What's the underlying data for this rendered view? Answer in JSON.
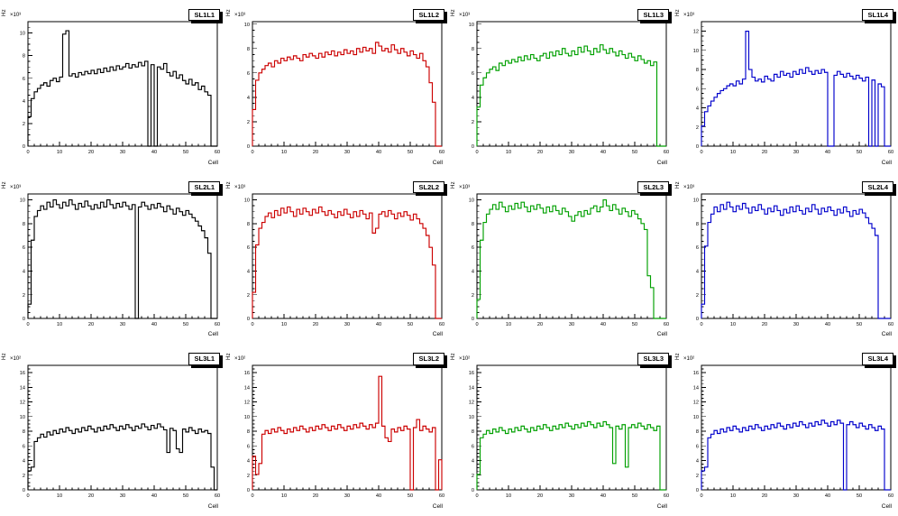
{
  "page": {
    "background": "#ffffff"
  },
  "chart_data": [
    {
      "type": "line",
      "style": "step-histogram",
      "title": "SL1L1",
      "color": "#000000",
      "xlabel": "Cell",
      "ylabel": "Hz",
      "exponent_label": "×10³",
      "xlim": [
        0,
        60
      ],
      "ylim": [
        0,
        11
      ],
      "x_tick_step": 10,
      "y_tick_step": 2,
      "bin_width": 1,
      "grid": false,
      "legend": false,
      "values": [
        2.6,
        4.2,
        4.8,
        5.1,
        5.4,
        5.6,
        5.3,
        5.8,
        6.0,
        5.7,
        6.1,
        9.9,
        10.2,
        6.2,
        6.4,
        6.1,
        6.5,
        6.3,
        6.6,
        6.4,
        6.7,
        6.4,
        6.8,
        6.5,
        6.9,
        6.6,
        7.0,
        6.7,
        7.1,
        6.8,
        7.0,
        7.3,
        6.9,
        7.2,
        7.0,
        7.4,
        7.1,
        7.5,
        0.0,
        7.2,
        0.0,
        7.0,
        6.8,
        7.3,
        6.5,
        6.2,
        6.6,
        6.0,
        6.3,
        5.8,
        5.5,
        5.9,
        5.4,
        5.6,
        5.0,
        5.3,
        4.8,
        4.5,
        0.0,
        0.0
      ]
    },
    {
      "type": "line",
      "style": "step-histogram",
      "title": "SL1L2",
      "color": "#cc0000",
      "xlabel": "Cell",
      "ylabel": "Hz",
      "exponent_label": "×10³",
      "xlim": [
        0,
        60
      ],
      "ylim": [
        0,
        10.2
      ],
      "x_tick_step": 10,
      "y_tick_step": 2,
      "bin_width": 1,
      "grid": false,
      "legend": false,
      "values": [
        3.0,
        5.4,
        6.0,
        6.3,
        6.6,
        6.8,
        6.5,
        7.0,
        6.8,
        7.2,
        7.0,
        7.3,
        7.1,
        7.4,
        7.2,
        7.0,
        7.5,
        7.3,
        7.6,
        7.4,
        7.2,
        7.6,
        7.3,
        7.7,
        7.5,
        7.8,
        7.4,
        7.7,
        7.5,
        7.9,
        7.6,
        7.8,
        7.5,
        8.0,
        7.7,
        8.1,
        7.8,
        8.0,
        7.6,
        8.5,
        8.2,
        7.8,
        8.0,
        7.7,
        8.3,
        7.9,
        7.6,
        8.0,
        7.7,
        7.4,
        7.8,
        7.5,
        7.2,
        7.6,
        7.0,
        6.5,
        5.2,
        3.6,
        0.0,
        0.0
      ]
    },
    {
      "type": "line",
      "style": "step-histogram",
      "title": "SL1L3",
      "color": "#00a000",
      "xlabel": "Cell",
      "ylabel": "Hz",
      "exponent_label": "×10³",
      "xlim": [
        0,
        60
      ],
      "ylim": [
        0,
        10.2
      ],
      "x_tick_step": 10,
      "y_tick_step": 2,
      "bin_width": 1,
      "grid": false,
      "legend": false,
      "values": [
        3.2,
        5.0,
        5.6,
        6.0,
        6.3,
        6.5,
        6.2,
        6.8,
        6.6,
        7.0,
        6.8,
        7.1,
        6.9,
        7.3,
        7.0,
        7.4,
        7.1,
        7.5,
        7.2,
        7.0,
        7.4,
        7.6,
        7.2,
        7.7,
        7.4,
        7.8,
        7.5,
        8.0,
        7.6,
        7.4,
        7.8,
        7.5,
        8.1,
        7.7,
        8.2,
        7.8,
        7.5,
        8.0,
        7.7,
        8.3,
        7.9,
        7.6,
        8.0,
        7.7,
        7.4,
        7.8,
        7.5,
        7.2,
        7.6,
        7.3,
        7.0,
        7.4,
        7.1,
        6.8,
        7.0,
        6.6,
        6.9,
        0.0,
        0.0,
        0.0
      ]
    },
    {
      "type": "line",
      "style": "step-histogram",
      "title": "SL1L4",
      "color": "#0000cc",
      "xlabel": "Cell",
      "ylabel": "Hz",
      "exponent_label": "×10³",
      "xlim": [
        0,
        60
      ],
      "ylim": [
        0,
        13
      ],
      "x_tick_step": 10,
      "y_tick_step": 2,
      "bin_width": 1,
      "grid": false,
      "legend": false,
      "values": [
        2.1,
        3.6,
        4.2,
        4.7,
        5.1,
        5.5,
        5.8,
        6.0,
        6.3,
        6.5,
        6.3,
        6.8,
        6.5,
        7.0,
        12.0,
        8.0,
        7.2,
        6.8,
        7.0,
        6.7,
        7.3,
        7.0,
        6.8,
        7.5,
        7.2,
        7.8,
        7.4,
        7.6,
        7.2,
        7.8,
        7.5,
        8.0,
        7.6,
        8.2,
        7.8,
        7.5,
        7.9,
        7.6,
        8.0,
        7.7,
        0.0,
        0.0,
        7.4,
        7.8,
        7.5,
        7.2,
        7.6,
        7.3,
        7.0,
        7.4,
        7.1,
        6.8,
        7.2,
        0.0,
        6.9,
        0.0,
        6.5,
        6.2,
        0.0,
        0.0
      ]
    },
    {
      "type": "line",
      "style": "step-histogram",
      "title": "SL2L1",
      "color": "#000000",
      "xlabel": "Cell",
      "ylabel": "Hz",
      "exponent_label": "×10³",
      "xlim": [
        0,
        60
      ],
      "ylim": [
        0,
        10.5
      ],
      "x_tick_step": 10,
      "y_tick_step": 2,
      "bin_width": 1,
      "grid": false,
      "legend": false,
      "values": [
        1.2,
        6.6,
        8.6,
        9.1,
        9.5,
        9.2,
        9.8,
        9.4,
        10.0,
        9.6,
        9.3,
        9.8,
        9.5,
        10.0,
        9.6,
        9.2,
        9.7,
        9.4,
        9.9,
        9.5,
        9.2,
        9.6,
        9.3,
        9.8,
        9.4,
        10.0,
        9.6,
        9.3,
        9.7,
        9.4,
        9.8,
        9.5,
        9.2,
        9.6,
        0.0,
        9.4,
        9.8,
        9.5,
        9.2,
        9.6,
        9.3,
        9.7,
        9.4,
        9.0,
        9.5,
        9.2,
        8.8,
        9.3,
        9.0,
        8.7,
        9.1,
        8.8,
        8.5,
        8.2,
        7.8,
        7.4,
        6.8,
        5.5,
        0.0,
        0.0
      ]
    },
    {
      "type": "line",
      "style": "step-histogram",
      "title": "SL2L2",
      "color": "#cc0000",
      "xlabel": "Cell",
      "ylabel": "Hz",
      "exponent_label": "×10³",
      "xlim": [
        0,
        60
      ],
      "ylim": [
        0,
        10.5
      ],
      "x_tick_step": 10,
      "y_tick_step": 2,
      "bin_width": 1,
      "grid": false,
      "legend": false,
      "values": [
        2.2,
        6.2,
        7.6,
        8.1,
        8.6,
        8.9,
        8.5,
        9.1,
        8.7,
        9.3,
        8.9,
        9.4,
        9.0,
        8.6,
        9.2,
        8.8,
        9.3,
        9.0,
        8.7,
        9.2,
        8.9,
        9.4,
        9.0,
        8.7,
        9.1,
        8.8,
        8.5,
        9.0,
        8.7,
        9.2,
        8.8,
        8.5,
        9.0,
        8.6,
        9.1,
        8.8,
        8.4,
        8.9,
        7.2,
        7.6,
        8.8,
        9.0,
        8.6,
        9.1,
        8.8,
        8.4,
        8.9,
        8.6,
        9.0,
        8.7,
        8.3,
        8.8,
        8.4,
        8.0,
        7.6,
        7.0,
        6.0,
        4.5,
        0.0,
        0.0
      ]
    },
    {
      "type": "line",
      "style": "step-histogram",
      "title": "SL2L3",
      "color": "#00a000",
      "xlabel": "Cell",
      "ylabel": "Hz",
      "exponent_label": "×10³",
      "xlim": [
        0,
        60
      ],
      "ylim": [
        0,
        10.5
      ],
      "x_tick_step": 10,
      "y_tick_step": 2,
      "bin_width": 1,
      "grid": false,
      "legend": false,
      "values": [
        1.6,
        6.6,
        8.1,
        8.8,
        9.2,
        9.6,
        9.2,
        9.8,
        9.4,
        9.0,
        9.5,
        9.2,
        9.7,
        9.3,
        9.8,
        9.4,
        9.0,
        9.5,
        9.2,
        9.6,
        9.3,
        8.9,
        9.4,
        9.0,
        9.5,
        9.1,
        8.8,
        9.3,
        9.0,
        8.6,
        8.2,
        8.7,
        9.0,
        8.6,
        9.1,
        8.8,
        9.3,
        9.5,
        9.0,
        9.4,
        10.0,
        9.5,
        9.1,
        9.6,
        9.2,
        8.8,
        9.3,
        9.0,
        8.6,
        9.1,
        8.8,
        8.4,
        8.0,
        7.5,
        3.6,
        2.6,
        0.0,
        0.0,
        0.0,
        0.0
      ]
    },
    {
      "type": "line",
      "style": "step-histogram",
      "title": "SL2L4",
      "color": "#0000cc",
      "xlabel": "Cell",
      "ylabel": "Hz",
      "exponent_label": "×10³",
      "xlim": [
        0,
        60
      ],
      "ylim": [
        0,
        10.5
      ],
      "x_tick_step": 10,
      "y_tick_step": 2,
      "bin_width": 1,
      "grid": false,
      "legend": false,
      "values": [
        1.2,
        6.1,
        8.1,
        8.8,
        9.4,
        9.0,
        9.6,
        9.2,
        9.8,
        9.4,
        9.0,
        9.5,
        9.2,
        9.7,
        9.3,
        8.9,
        9.4,
        9.1,
        9.6,
        9.2,
        8.8,
        9.3,
        9.0,
        9.5,
        9.1,
        8.7,
        9.2,
        8.9,
        9.4,
        9.0,
        9.5,
        9.1,
        8.8,
        9.3,
        9.0,
        9.6,
        9.2,
        8.8,
        9.3,
        9.0,
        9.4,
        9.1,
        8.7,
        9.2,
        8.9,
        9.4,
        9.0,
        8.6,
        9.1,
        8.8,
        9.2,
        8.9,
        8.5,
        8.0,
        7.6,
        7.0,
        0.0,
        0.0,
        0.0,
        0.0
      ]
    },
    {
      "type": "line",
      "style": "step-histogram",
      "title": "SL3L1",
      "color": "#000000",
      "xlabel": "Cell",
      "ylabel": "Hz",
      "exponent_label": "×10²",
      "xlim": [
        0,
        60
      ],
      "ylim": [
        0,
        17
      ],
      "x_tick_step": 10,
      "y_tick_step": 2,
      "bin_width": 1,
      "grid": false,
      "legend": false,
      "values": [
        2.6,
        3.1,
        6.6,
        7.1,
        7.6,
        7.2,
        7.9,
        7.5,
        8.1,
        7.7,
        8.3,
        7.9,
        8.5,
        8.1,
        7.7,
        8.3,
        7.9,
        8.5,
        8.1,
        8.7,
        8.3,
        7.9,
        8.5,
        8.1,
        8.7,
        8.3,
        8.9,
        8.5,
        8.1,
        8.7,
        8.3,
        8.9,
        8.5,
        8.1,
        8.7,
        8.4,
        9.0,
        8.6,
        8.2,
        8.8,
        8.4,
        9.0,
        8.6,
        8.2,
        5.1,
        8.4,
        8.1,
        5.6,
        5.1,
        8.3,
        7.9,
        8.5,
        8.1,
        7.7,
        8.3,
        7.9,
        8.1,
        7.7,
        3.1,
        0.0
      ]
    },
    {
      "type": "line",
      "style": "step-histogram",
      "title": "SL3L2",
      "color": "#cc0000",
      "xlabel": "Cell",
      "ylabel": "Hz",
      "exponent_label": "×10²",
      "xlim": [
        0,
        60
      ],
      "ylim": [
        0,
        17
      ],
      "x_tick_step": 10,
      "y_tick_step": 2,
      "bin_width": 1,
      "grid": false,
      "legend": false,
      "values": [
        4.6,
        2.1,
        3.6,
        7.6,
        8.1,
        7.7,
        8.3,
        7.9,
        8.5,
        8.1,
        7.7,
        8.3,
        7.9,
        8.5,
        8.1,
        8.7,
        8.3,
        7.9,
        8.5,
        8.1,
        8.7,
        8.3,
        8.9,
        8.5,
        8.1,
        8.7,
        8.3,
        8.9,
        8.5,
        8.1,
        8.7,
        8.3,
        8.9,
        8.5,
        9.1,
        8.7,
        8.3,
        8.9,
        8.5,
        9.1,
        15.5,
        8.7,
        7.1,
        6.6,
        8.3,
        7.9,
        8.5,
        8.1,
        8.7,
        8.3,
        0.0,
        8.5,
        9.6,
        8.1,
        8.7,
        8.3,
        7.9,
        8.5,
        0.0,
        4.1
      ]
    },
    {
      "type": "line",
      "style": "step-histogram",
      "title": "SL3L3",
      "color": "#00a000",
      "xlabel": "Cell",
      "ylabel": "Hz",
      "exponent_label": "×10²",
      "xlim": [
        0,
        60
      ],
      "ylim": [
        0,
        17
      ],
      "x_tick_step": 10,
      "y_tick_step": 2,
      "bin_width": 1,
      "grid": false,
      "legend": false,
      "values": [
        2.1,
        7.1,
        7.6,
        8.1,
        7.7,
        8.3,
        7.9,
        8.5,
        8.1,
        7.7,
        8.3,
        7.9,
        8.5,
        8.1,
        8.7,
        8.3,
        7.9,
        8.5,
        8.1,
        8.7,
        8.3,
        8.9,
        8.5,
        8.1,
        8.7,
        8.3,
        8.9,
        8.5,
        9.1,
        8.7,
        8.3,
        8.9,
        8.5,
        9.1,
        8.7,
        9.3,
        8.9,
        8.5,
        9.1,
        8.7,
        9.3,
        8.9,
        8.5,
        3.6,
        8.7,
        8.3,
        8.9,
        3.1,
        8.5,
        8.9,
        8.5,
        9.1,
        8.7,
        8.3,
        8.9,
        8.5,
        8.1,
        8.7,
        0.0,
        0.0
      ]
    },
    {
      "type": "line",
      "style": "step-histogram",
      "title": "SL3L4",
      "color": "#0000cc",
      "xlabel": "Cell",
      "ylabel": "Hz",
      "exponent_label": "×10²",
      "xlim": [
        0,
        60
      ],
      "ylim": [
        0,
        17
      ],
      "x_tick_step": 10,
      "y_tick_step": 2,
      "bin_width": 1,
      "grid": false,
      "legend": false,
      "values": [
        2.6,
        3.1,
        7.1,
        7.6,
        8.1,
        7.7,
        8.3,
        7.9,
        8.5,
        8.1,
        8.7,
        8.3,
        7.9,
        8.5,
        8.1,
        8.7,
        8.3,
        8.9,
        8.5,
        8.1,
        8.7,
        8.3,
        8.9,
        8.5,
        9.1,
        8.7,
        8.3,
        8.9,
        8.5,
        9.1,
        8.7,
        9.3,
        8.9,
        8.5,
        9.1,
        8.7,
        9.3,
        8.9,
        9.5,
        9.1,
        8.7,
        9.3,
        8.9,
        9.5,
        9.1,
        0.0,
        8.9,
        9.3,
        8.9,
        8.5,
        9.1,
        8.7,
        8.3,
        8.9,
        8.5,
        8.1,
        8.7,
        8.3,
        0.0,
        0.0
      ]
    }
  ]
}
